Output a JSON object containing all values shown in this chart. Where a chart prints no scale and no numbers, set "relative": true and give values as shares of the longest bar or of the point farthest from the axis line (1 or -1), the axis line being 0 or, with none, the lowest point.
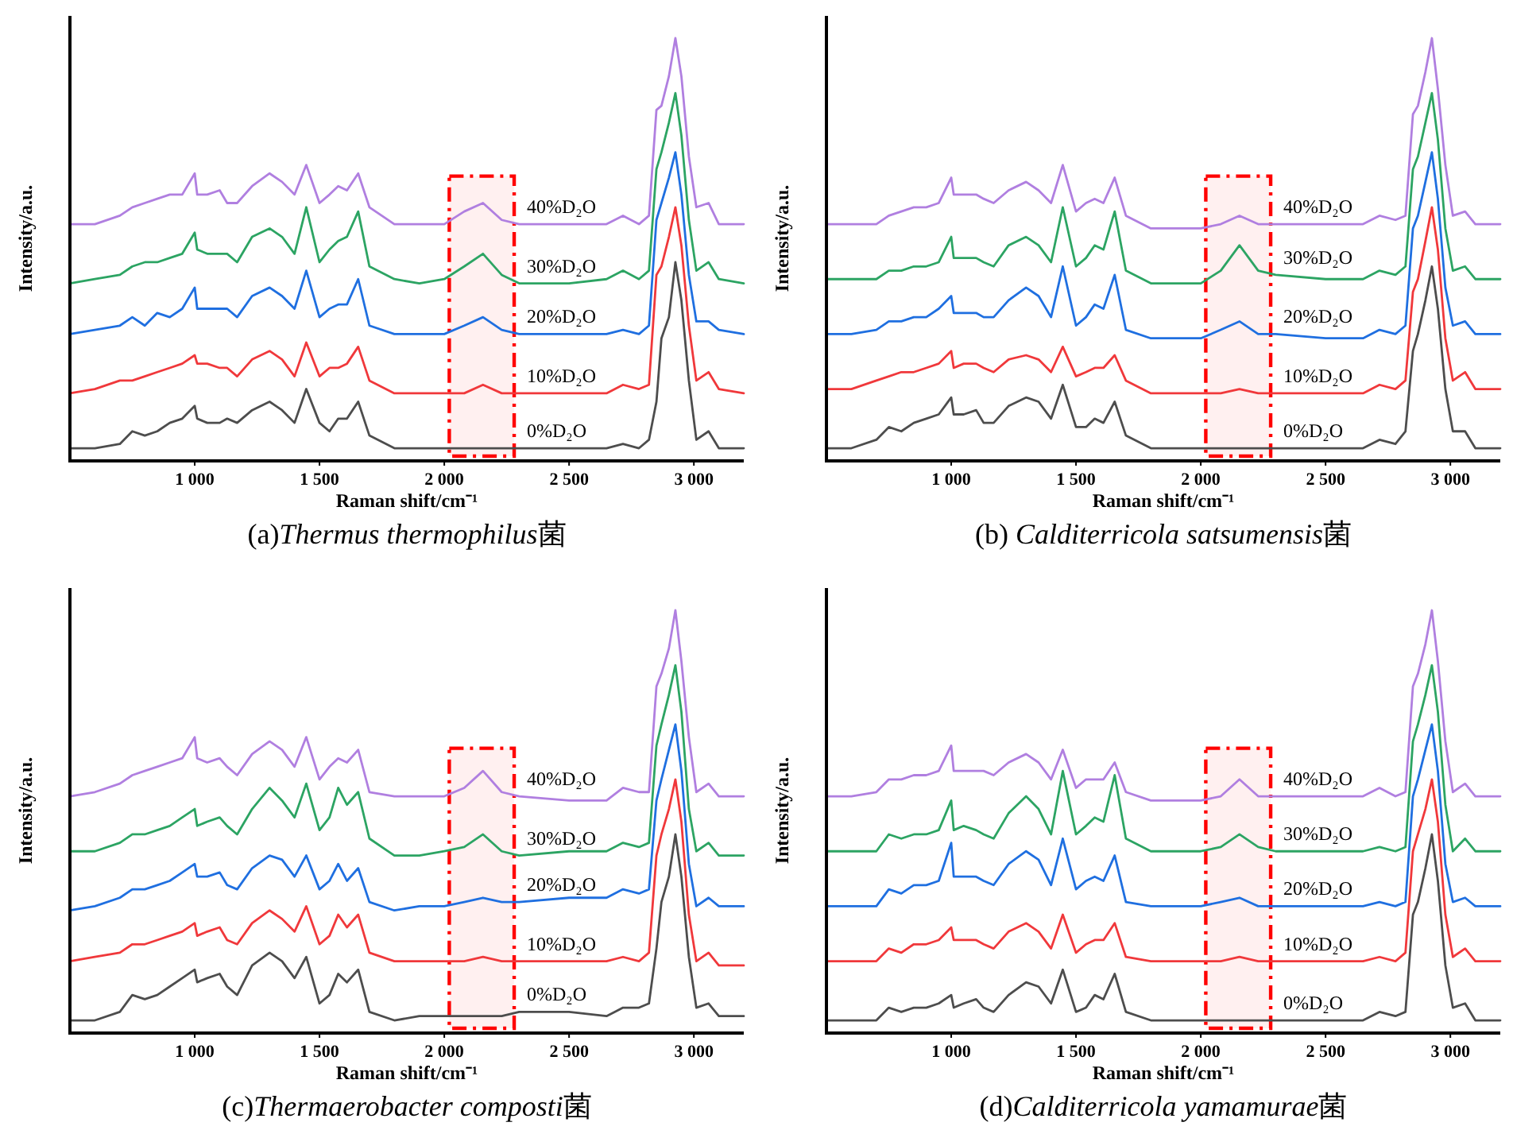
{
  "chart_data": [
    {
      "type": "line",
      "title": "(a)Thermus thermophilus菌",
      "xlabel": "Raman shift/cm⁻¹",
      "ylabel": "Intensity/a.u.",
      "relative": true,
      "xlim": [
        500,
        3200
      ],
      "xticks": [
        {
          "value": 1000,
          "label": "1 000"
        },
        {
          "value": 1500,
          "label": "1 500"
        },
        {
          "value": 2000,
          "label": "2 000"
        },
        {
          "value": 2500,
          "label": "2 500"
        },
        {
          "value": 3000,
          "label": "3 000"
        }
      ],
      "bands": [
        {
          "axis": "x",
          "from": 2020,
          "to": 2280,
          "color": "#ff0000"
        }
      ],
      "x": [
        500,
        600,
        700,
        750,
        800,
        850,
        900,
        950,
        1000,
        1010,
        1050,
        1100,
        1130,
        1170,
        1230,
        1300,
        1350,
        1400,
        1447,
        1500,
        1540,
        1575,
        1610,
        1655,
        1700,
        1800,
        1900,
        2000,
        2080,
        2155,
        2230,
        2300,
        2500,
        2650,
        2716,
        2780,
        2820,
        2850,
        2870,
        2900,
        2926,
        2950,
        2980,
        3010,
        3059,
        3100,
        3200
      ],
      "series": [
        {
          "name": "0%D₂O",
          "color": "#4d4d4d",
          "values": [
            0.03,
            0.03,
            0.04,
            0.07,
            0.06,
            0.07,
            0.09,
            0.1,
            0.13,
            0.1,
            0.09,
            0.09,
            0.1,
            0.09,
            0.12,
            0.14,
            0.12,
            0.09,
            0.17,
            0.09,
            0.07,
            0.1,
            0.1,
            0.14,
            0.06,
            0.03,
            0.03,
            0.03,
            0.03,
            0.03,
            0.03,
            0.03,
            0.03,
            0.03,
            0.04,
            0.03,
            0.05,
            0.14,
            0.29,
            0.34,
            0.47,
            0.38,
            0.19,
            0.05,
            0.07,
            0.03,
            0.03
          ]
        },
        {
          "name": "10%D₂O",
          "color": "#f0383b",
          "values": [
            0.16,
            0.17,
            0.19,
            0.19,
            0.2,
            0.21,
            0.22,
            0.23,
            0.25,
            0.23,
            0.23,
            0.22,
            0.22,
            0.2,
            0.24,
            0.26,
            0.24,
            0.2,
            0.28,
            0.2,
            0.22,
            0.22,
            0.23,
            0.27,
            0.19,
            0.16,
            0.16,
            0.16,
            0.16,
            0.18,
            0.16,
            0.16,
            0.16,
            0.16,
            0.18,
            0.17,
            0.18,
            0.44,
            0.46,
            0.53,
            0.6,
            0.51,
            0.32,
            0.19,
            0.21,
            0.17,
            0.16
          ]
        },
        {
          "name": "20%D₂O",
          "color": "#1f6fe0",
          "values": [
            0.3,
            0.31,
            0.32,
            0.34,
            0.32,
            0.35,
            0.34,
            0.36,
            0.41,
            0.36,
            0.36,
            0.36,
            0.36,
            0.34,
            0.39,
            0.41,
            0.39,
            0.36,
            0.45,
            0.34,
            0.36,
            0.37,
            0.37,
            0.43,
            0.32,
            0.3,
            0.3,
            0.3,
            0.32,
            0.34,
            0.31,
            0.3,
            0.3,
            0.3,
            0.31,
            0.3,
            0.32,
            0.57,
            0.61,
            0.67,
            0.73,
            0.63,
            0.44,
            0.33,
            0.33,
            0.31,
            0.3
          ]
        },
        {
          "name": "30%D₂O",
          "color": "#2ca463",
          "values": [
            0.42,
            0.43,
            0.44,
            0.46,
            0.47,
            0.47,
            0.48,
            0.49,
            0.54,
            0.5,
            0.49,
            0.49,
            0.49,
            0.47,
            0.53,
            0.55,
            0.53,
            0.49,
            0.6,
            0.47,
            0.5,
            0.52,
            0.53,
            0.59,
            0.46,
            0.43,
            0.42,
            0.43,
            0.46,
            0.49,
            0.44,
            0.42,
            0.42,
            0.43,
            0.45,
            0.43,
            0.45,
            0.69,
            0.73,
            0.8,
            0.87,
            0.77,
            0.57,
            0.45,
            0.47,
            0.43,
            0.42
          ]
        },
        {
          "name": "40%D₂O",
          "color": "#b07fe0",
          "values": [
            0.56,
            0.56,
            0.58,
            0.6,
            0.61,
            0.62,
            0.63,
            0.63,
            0.68,
            0.63,
            0.63,
            0.64,
            0.61,
            0.61,
            0.65,
            0.68,
            0.66,
            0.63,
            0.7,
            0.61,
            0.63,
            0.65,
            0.64,
            0.68,
            0.6,
            0.56,
            0.56,
            0.56,
            0.59,
            0.61,
            0.57,
            0.56,
            0.56,
            0.56,
            0.58,
            0.56,
            0.58,
            0.83,
            0.84,
            0.91,
            1.0,
            0.91,
            0.72,
            0.6,
            0.61,
            0.56,
            0.56
          ]
        }
      ]
    },
    {
      "type": "line",
      "title": "(b) Calditerricola satsumensis菌",
      "xlabel": "Raman shift/cm⁻¹",
      "ylabel": "Intensity/a.u.",
      "relative": true,
      "xlim": [
        500,
        3200
      ],
      "xticks": [
        {
          "value": 1000,
          "label": "1 000"
        },
        {
          "value": 1500,
          "label": "1 500"
        },
        {
          "value": 2000,
          "label": "2 000"
        },
        {
          "value": 2500,
          "label": "2 500"
        },
        {
          "value": 3000,
          "label": "3 000"
        }
      ],
      "bands": [
        {
          "axis": "x",
          "from": 2020,
          "to": 2280,
          "color": "#ff0000"
        }
      ],
      "x": [
        500,
        600,
        700,
        750,
        800,
        850,
        900,
        950,
        1000,
        1010,
        1050,
        1100,
        1130,
        1170,
        1230,
        1300,
        1350,
        1400,
        1447,
        1500,
        1540,
        1575,
        1610,
        1655,
        1700,
        1800,
        1900,
        2000,
        2080,
        2155,
        2230,
        2300,
        2500,
        2650,
        2716,
        2780,
        2820,
        2850,
        2870,
        2900,
        2926,
        2950,
        2980,
        3010,
        3059,
        3100,
        3200
      ],
      "series": [
        {
          "name": "0%D₂O",
          "color": "#4d4d4d",
          "values": [
            0.03,
            0.03,
            0.05,
            0.08,
            0.07,
            0.09,
            0.1,
            0.11,
            0.15,
            0.11,
            0.11,
            0.12,
            0.09,
            0.09,
            0.13,
            0.15,
            0.14,
            0.1,
            0.18,
            0.08,
            0.08,
            0.1,
            0.09,
            0.14,
            0.06,
            0.03,
            0.03,
            0.03,
            0.03,
            0.03,
            0.03,
            0.03,
            0.03,
            0.03,
            0.05,
            0.04,
            0.07,
            0.26,
            0.3,
            0.38,
            0.46,
            0.36,
            0.17,
            0.07,
            0.07,
            0.03,
            0.03
          ]
        },
        {
          "name": "10%D₂O",
          "color": "#f0383b",
          "values": [
            0.17,
            0.17,
            0.19,
            0.2,
            0.21,
            0.21,
            0.22,
            0.23,
            0.26,
            0.22,
            0.23,
            0.23,
            0.22,
            0.21,
            0.24,
            0.25,
            0.24,
            0.21,
            0.27,
            0.2,
            0.21,
            0.22,
            0.22,
            0.25,
            0.19,
            0.16,
            0.16,
            0.16,
            0.16,
            0.17,
            0.16,
            0.16,
            0.16,
            0.16,
            0.18,
            0.17,
            0.19,
            0.4,
            0.43,
            0.52,
            0.6,
            0.5,
            0.29,
            0.19,
            0.21,
            0.17,
            0.17
          ]
        },
        {
          "name": "20%D₂O",
          "color": "#1f6fe0",
          "values": [
            0.3,
            0.3,
            0.31,
            0.33,
            0.33,
            0.34,
            0.34,
            0.36,
            0.39,
            0.35,
            0.35,
            0.35,
            0.34,
            0.34,
            0.38,
            0.41,
            0.39,
            0.34,
            0.46,
            0.32,
            0.34,
            0.37,
            0.36,
            0.44,
            0.31,
            0.29,
            0.29,
            0.29,
            0.31,
            0.33,
            0.3,
            0.3,
            0.29,
            0.29,
            0.31,
            0.3,
            0.32,
            0.55,
            0.58,
            0.66,
            0.73,
            0.62,
            0.41,
            0.32,
            0.33,
            0.3,
            0.3
          ]
        },
        {
          "name": "30%D₂O",
          "color": "#2ca463",
          "values": [
            0.43,
            0.43,
            0.43,
            0.45,
            0.45,
            0.46,
            0.46,
            0.47,
            0.53,
            0.48,
            0.48,
            0.48,
            0.47,
            0.46,
            0.51,
            0.53,
            0.51,
            0.47,
            0.6,
            0.46,
            0.48,
            0.51,
            0.5,
            0.59,
            0.45,
            0.42,
            0.42,
            0.42,
            0.45,
            0.51,
            0.45,
            0.44,
            0.43,
            0.43,
            0.45,
            0.44,
            0.46,
            0.69,
            0.72,
            0.8,
            0.87,
            0.76,
            0.55,
            0.45,
            0.46,
            0.43,
            0.43
          ]
        },
        {
          "name": "40%D₂O",
          "color": "#b07fe0",
          "values": [
            0.56,
            0.56,
            0.56,
            0.58,
            0.59,
            0.6,
            0.6,
            0.61,
            0.67,
            0.63,
            0.63,
            0.63,
            0.62,
            0.61,
            0.64,
            0.66,
            0.64,
            0.61,
            0.7,
            0.59,
            0.61,
            0.62,
            0.61,
            0.67,
            0.58,
            0.55,
            0.55,
            0.55,
            0.56,
            0.58,
            0.56,
            0.56,
            0.56,
            0.56,
            0.58,
            0.57,
            0.58,
            0.82,
            0.84,
            0.92,
            1.0,
            0.88,
            0.7,
            0.58,
            0.59,
            0.56,
            0.56
          ]
        }
      ]
    },
    {
      "type": "line",
      "title": "(c)Thermaerobacter composti菌",
      "xlabel": "Raman shift/cm⁻¹",
      "ylabel": "Intensity/a.u.",
      "relative": true,
      "xlim": [
        500,
        3200
      ],
      "xticks": [
        {
          "value": 1000,
          "label": "1 000"
        },
        {
          "value": 1500,
          "label": "1 500"
        },
        {
          "value": 2000,
          "label": "2 000"
        },
        {
          "value": 2500,
          "label": "2 500"
        },
        {
          "value": 3000,
          "label": "3 000"
        }
      ],
      "bands": [
        {
          "axis": "x",
          "from": 2020,
          "to": 2280,
          "color": "#ff0000"
        }
      ],
      "x": [
        500,
        600,
        700,
        750,
        800,
        850,
        900,
        950,
        1000,
        1010,
        1050,
        1100,
        1130,
        1170,
        1230,
        1300,
        1350,
        1400,
        1447,
        1500,
        1540,
        1575,
        1610,
        1655,
        1700,
        1800,
        1900,
        2000,
        2080,
        2155,
        2230,
        2300,
        2500,
        2650,
        2716,
        2780,
        2820,
        2850,
        2870,
        2900,
        2926,
        2950,
        2980,
        3010,
        3059,
        3100,
        3200
      ],
      "series": [
        {
          "name": "0%D₂O",
          "color": "#4d4d4d",
          "values": [
            0.03,
            0.03,
            0.05,
            0.09,
            0.08,
            0.09,
            0.11,
            0.13,
            0.15,
            0.12,
            0.13,
            0.14,
            0.11,
            0.09,
            0.16,
            0.19,
            0.17,
            0.13,
            0.18,
            0.07,
            0.09,
            0.14,
            0.12,
            0.15,
            0.05,
            0.03,
            0.04,
            0.04,
            0.04,
            0.04,
            0.04,
            0.05,
            0.05,
            0.04,
            0.06,
            0.06,
            0.07,
            0.2,
            0.31,
            0.37,
            0.47,
            0.37,
            0.18,
            0.06,
            0.07,
            0.04,
            0.04
          ]
        },
        {
          "name": "10%D₂O",
          "color": "#f0383b",
          "values": [
            0.17,
            0.18,
            0.19,
            0.21,
            0.21,
            0.22,
            0.23,
            0.24,
            0.26,
            0.23,
            0.24,
            0.25,
            0.22,
            0.21,
            0.26,
            0.29,
            0.27,
            0.24,
            0.3,
            0.21,
            0.23,
            0.28,
            0.25,
            0.28,
            0.19,
            0.17,
            0.17,
            0.17,
            0.17,
            0.18,
            0.17,
            0.17,
            0.17,
            0.17,
            0.18,
            0.17,
            0.19,
            0.42,
            0.47,
            0.53,
            0.6,
            0.5,
            0.28,
            0.17,
            0.19,
            0.16,
            0.16
          ]
        },
        {
          "name": "20%D₂O",
          "color": "#1f6fe0",
          "values": [
            0.29,
            0.3,
            0.32,
            0.34,
            0.34,
            0.35,
            0.36,
            0.38,
            0.4,
            0.37,
            0.37,
            0.38,
            0.35,
            0.34,
            0.39,
            0.42,
            0.41,
            0.37,
            0.42,
            0.34,
            0.36,
            0.4,
            0.36,
            0.39,
            0.31,
            0.29,
            0.3,
            0.3,
            0.31,
            0.32,
            0.31,
            0.31,
            0.32,
            0.32,
            0.34,
            0.33,
            0.34,
            0.55,
            0.6,
            0.67,
            0.73,
            0.62,
            0.4,
            0.3,
            0.32,
            0.3,
            0.3
          ]
        },
        {
          "name": "30%D₂O",
          "color": "#2ca463",
          "values": [
            0.43,
            0.43,
            0.45,
            0.47,
            0.47,
            0.48,
            0.49,
            0.51,
            0.53,
            0.49,
            0.5,
            0.51,
            0.49,
            0.47,
            0.53,
            0.58,
            0.55,
            0.51,
            0.59,
            0.48,
            0.51,
            0.58,
            0.54,
            0.57,
            0.46,
            0.42,
            0.42,
            0.43,
            0.44,
            0.47,
            0.43,
            0.42,
            0.43,
            0.43,
            0.45,
            0.44,
            0.45,
            0.68,
            0.73,
            0.8,
            0.87,
            0.76,
            0.53,
            0.43,
            0.45,
            0.42,
            0.42
          ]
        },
        {
          "name": "40%D₂O",
          "color": "#b07fe0",
          "values": [
            0.56,
            0.57,
            0.59,
            0.61,
            0.62,
            0.63,
            0.64,
            0.65,
            0.7,
            0.65,
            0.64,
            0.65,
            0.63,
            0.61,
            0.66,
            0.69,
            0.67,
            0.63,
            0.7,
            0.6,
            0.63,
            0.65,
            0.64,
            0.67,
            0.57,
            0.56,
            0.56,
            0.56,
            0.58,
            0.62,
            0.57,
            0.56,
            0.55,
            0.55,
            0.58,
            0.57,
            0.57,
            0.82,
            0.85,
            0.91,
            1.0,
            0.88,
            0.7,
            0.57,
            0.59,
            0.56,
            0.56
          ]
        }
      ]
    },
    {
      "type": "line",
      "title": "(d)Calditerricola yamamurae菌",
      "xlabel": "Raman shift/cm⁻¹",
      "ylabel": "Intensity/a.u.",
      "relative": true,
      "xlim": [
        500,
        3200
      ],
      "xticks": [
        {
          "value": 1000,
          "label": "1 000"
        },
        {
          "value": 1500,
          "label": "1 500"
        },
        {
          "value": 2000,
          "label": "2 000"
        },
        {
          "value": 2500,
          "label": "2 500"
        },
        {
          "value": 3000,
          "label": "3 000"
        }
      ],
      "bands": [
        {
          "axis": "x",
          "from": 2020,
          "to": 2280,
          "color": "#ff0000"
        }
      ],
      "x": [
        500,
        600,
        700,
        750,
        800,
        850,
        900,
        950,
        1000,
        1010,
        1050,
        1100,
        1130,
        1170,
        1230,
        1300,
        1350,
        1400,
        1447,
        1500,
        1540,
        1575,
        1610,
        1655,
        1700,
        1800,
        1900,
        2000,
        2080,
        2155,
        2230,
        2300,
        2500,
        2650,
        2716,
        2780,
        2820,
        2850,
        2870,
        2900,
        2926,
        2950,
        2980,
        3010,
        3059,
        3100,
        3200
      ],
      "series": [
        {
          "name": "0%D₂O",
          "color": "#4d4d4d",
          "values": [
            0.03,
            0.03,
            0.03,
            0.06,
            0.05,
            0.06,
            0.06,
            0.07,
            0.09,
            0.06,
            0.07,
            0.08,
            0.06,
            0.05,
            0.09,
            0.12,
            0.11,
            0.07,
            0.15,
            0.05,
            0.06,
            0.09,
            0.08,
            0.14,
            0.05,
            0.03,
            0.03,
            0.03,
            0.03,
            0.03,
            0.03,
            0.03,
            0.03,
            0.03,
            0.05,
            0.04,
            0.05,
            0.28,
            0.31,
            0.39,
            0.47,
            0.36,
            0.16,
            0.06,
            0.07,
            0.03,
            0.03
          ]
        },
        {
          "name": "10%D₂O",
          "color": "#f0383b",
          "values": [
            0.17,
            0.17,
            0.17,
            0.2,
            0.19,
            0.21,
            0.21,
            0.22,
            0.25,
            0.22,
            0.22,
            0.22,
            0.21,
            0.2,
            0.24,
            0.26,
            0.24,
            0.2,
            0.28,
            0.19,
            0.21,
            0.22,
            0.22,
            0.26,
            0.18,
            0.17,
            0.17,
            0.17,
            0.17,
            0.18,
            0.17,
            0.17,
            0.17,
            0.17,
            0.18,
            0.17,
            0.19,
            0.43,
            0.47,
            0.53,
            0.6,
            0.5,
            0.28,
            0.18,
            0.2,
            0.17,
            0.17
          ]
        },
        {
          "name": "20%D₂O",
          "color": "#1f6fe0",
          "values": [
            0.3,
            0.3,
            0.3,
            0.34,
            0.33,
            0.35,
            0.35,
            0.36,
            0.45,
            0.37,
            0.37,
            0.37,
            0.36,
            0.35,
            0.4,
            0.43,
            0.41,
            0.35,
            0.46,
            0.34,
            0.36,
            0.37,
            0.36,
            0.42,
            0.31,
            0.3,
            0.3,
            0.3,
            0.31,
            0.32,
            0.3,
            0.3,
            0.3,
            0.3,
            0.31,
            0.3,
            0.31,
            0.56,
            0.6,
            0.67,
            0.73,
            0.62,
            0.4,
            0.31,
            0.32,
            0.3,
            0.3
          ]
        },
        {
          "name": "30%D₂O",
          "color": "#2ca463",
          "values": [
            0.43,
            0.43,
            0.43,
            0.47,
            0.46,
            0.47,
            0.47,
            0.48,
            0.55,
            0.48,
            0.49,
            0.48,
            0.47,
            0.46,
            0.52,
            0.56,
            0.53,
            0.47,
            0.62,
            0.47,
            0.49,
            0.51,
            0.5,
            0.61,
            0.46,
            0.43,
            0.43,
            0.43,
            0.44,
            0.47,
            0.44,
            0.43,
            0.43,
            0.43,
            0.44,
            0.43,
            0.44,
            0.69,
            0.73,
            0.8,
            0.87,
            0.76,
            0.54,
            0.43,
            0.46,
            0.43,
            0.43
          ]
        },
        {
          "name": "40%D₂O",
          "color": "#b07fe0",
          "values": [
            0.56,
            0.56,
            0.57,
            0.6,
            0.6,
            0.61,
            0.61,
            0.62,
            0.68,
            0.62,
            0.62,
            0.62,
            0.62,
            0.61,
            0.64,
            0.66,
            0.64,
            0.6,
            0.67,
            0.58,
            0.6,
            0.6,
            0.6,
            0.64,
            0.57,
            0.55,
            0.55,
            0.55,
            0.56,
            0.6,
            0.56,
            0.56,
            0.56,
            0.56,
            0.58,
            0.56,
            0.57,
            0.82,
            0.85,
            0.92,
            1.0,
            0.88,
            0.69,
            0.57,
            0.59,
            0.56,
            0.56
          ]
        }
      ]
    }
  ]
}
